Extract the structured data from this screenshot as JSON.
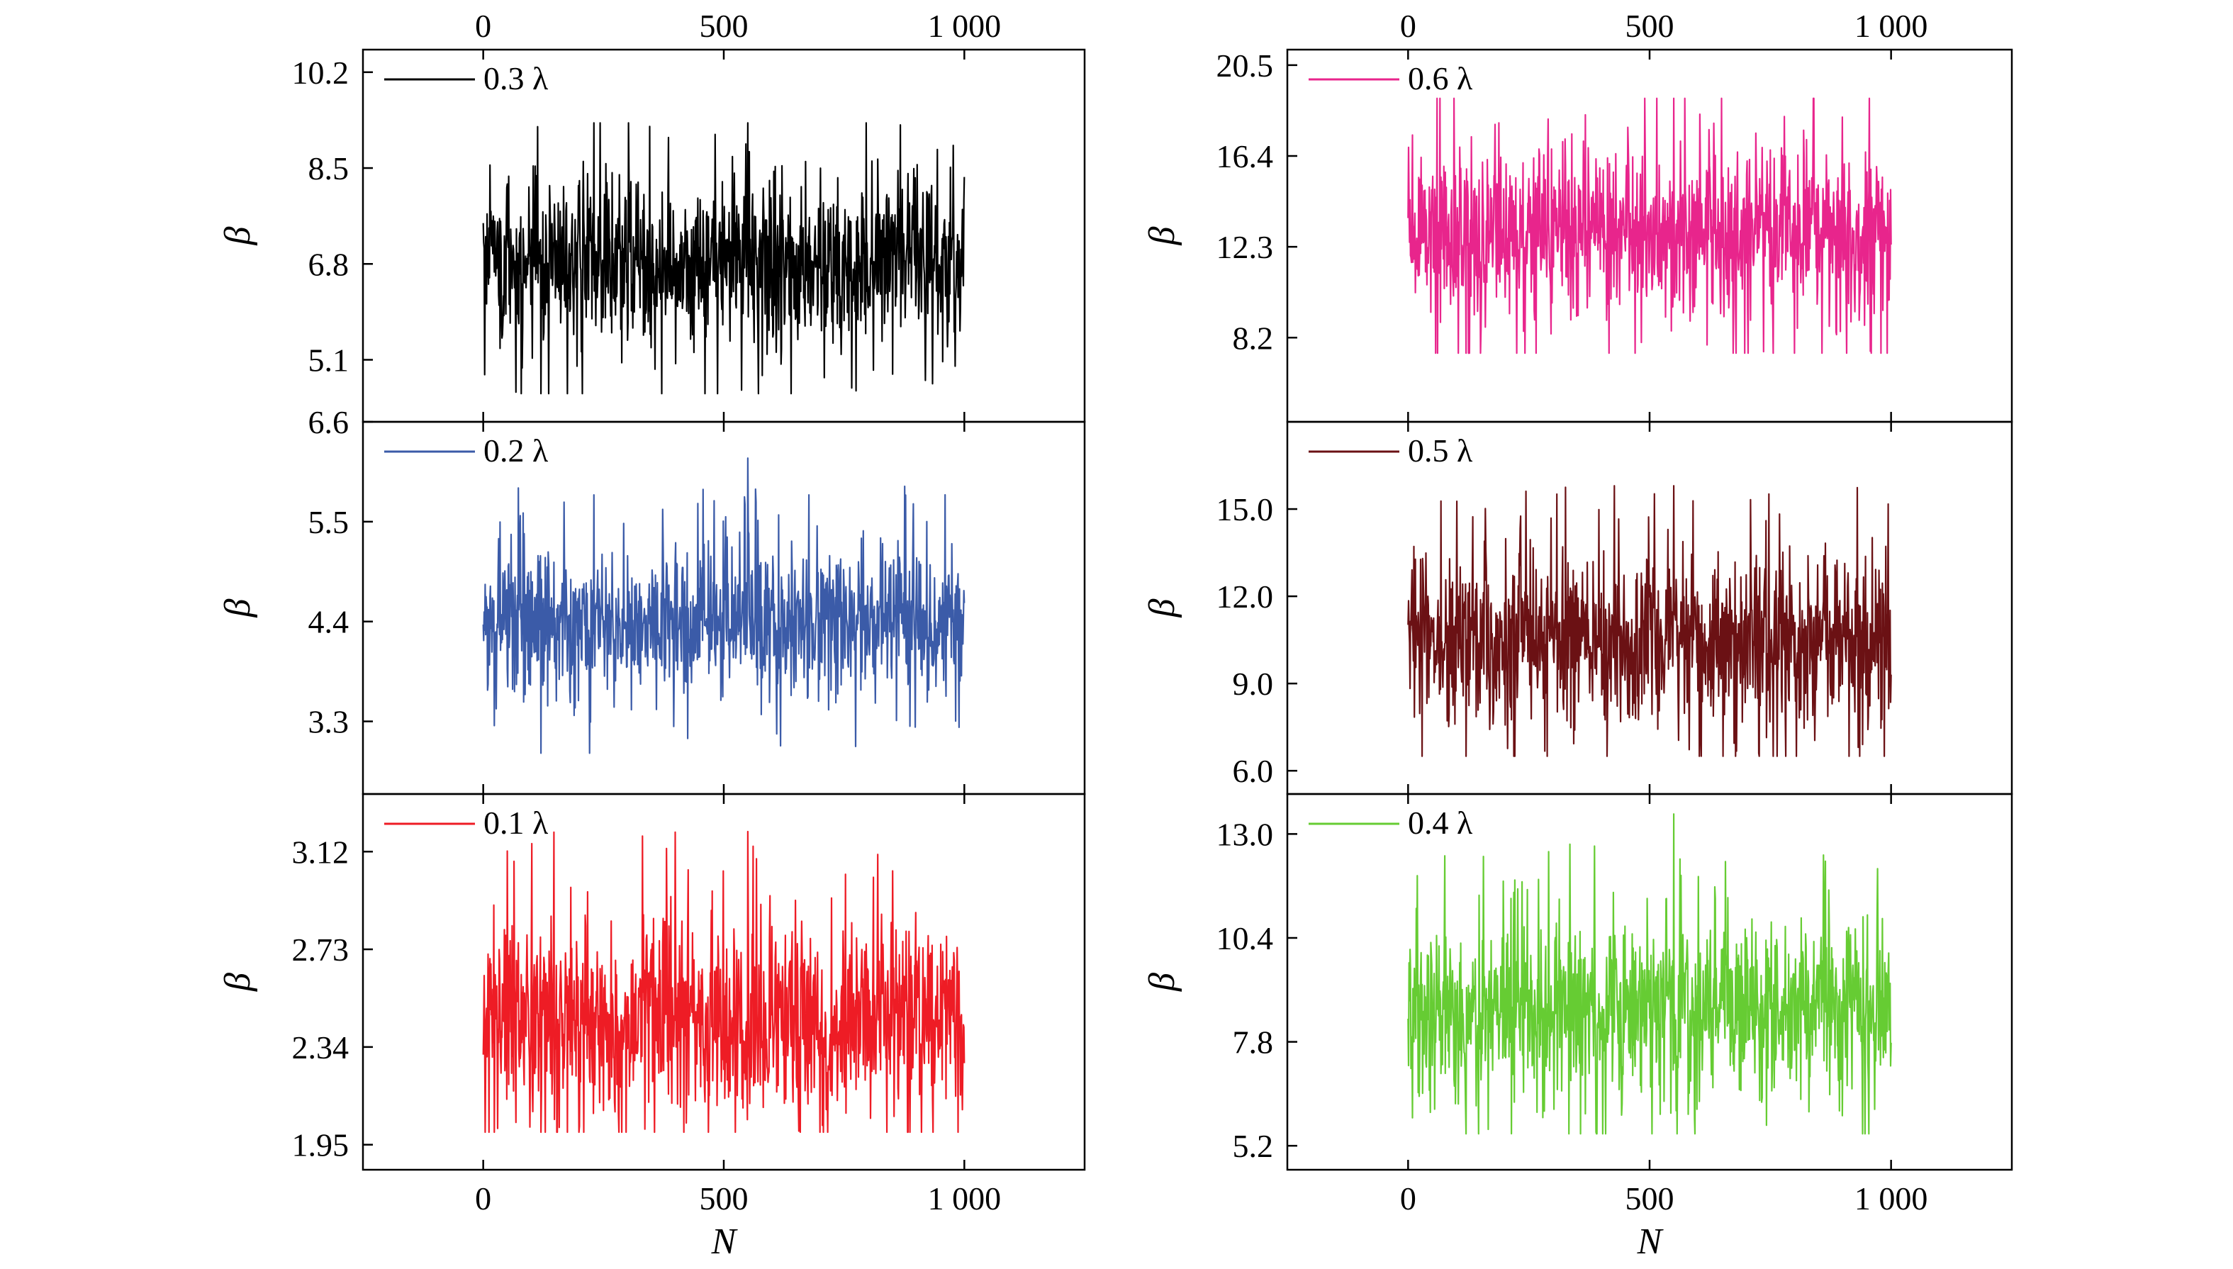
{
  "figure": {
    "x_axis_title": "N",
    "x_tick_labels": [
      "0",
      "500",
      "1 000"
    ]
  },
  "chart_data": [
    {
      "type": "line",
      "panel": "left-top",
      "series": [
        {
          "name": "0.3 λ",
          "color": "#000000",
          "mean": 6.8,
          "spread": 0.75,
          "spike_max": 9.3,
          "spike_min": 4.5
        }
      ],
      "x": [
        0,
        1000
      ],
      "xlim": [
        -250,
        1250
      ],
      "ylim": [
        4.0,
        10.6
      ],
      "ylabel": "β",
      "yticks": [
        5.1,
        6.8,
        8.5,
        10.2
      ],
      "ytick_labels": [
        "5.1",
        "6.8",
        "8.5",
        "10.2"
      ],
      "legend": "top-left"
    },
    {
      "type": "line",
      "panel": "left-middle",
      "series": [
        {
          "name": "0.2 λ",
          "color": "#3b5ba8",
          "mean": 4.4,
          "spread": 0.4,
          "spike_max": 6.2,
          "spike_min": 2.95
        }
      ],
      "x": [
        0,
        1000
      ],
      "xlim": [
        -250,
        1250
      ],
      "ylim": [
        2.5,
        6.6
      ],
      "ylabel": "β",
      "yticks": [
        3.3,
        4.4,
        5.5,
        6.6
      ],
      "ytick_labels": [
        "3.3",
        "4.4",
        "5.5",
        "6.6"
      ],
      "legend": "top-left"
    },
    {
      "type": "line",
      "panel": "left-bottom",
      "series": [
        {
          "name": "0.1 λ",
          "color": "#ee1c25",
          "mean": 2.45,
          "spread": 0.2,
          "spike_max": 3.2,
          "spike_min": 2.0
        }
      ],
      "x": [
        0,
        1000
      ],
      "xlim": [
        -250,
        1250
      ],
      "ylim": [
        1.85,
        3.35
      ],
      "ylabel": "β",
      "yticks": [
        1.95,
        2.34,
        2.73,
        3.12
      ],
      "ytick_labels": [
        "1.95",
        "2.34",
        "2.73",
        "3.12"
      ],
      "legend": "top-left"
    },
    {
      "type": "line",
      "panel": "right-top",
      "series": [
        {
          "name": "0.6 λ",
          "color": "#e8258c",
          "mean": 13.0,
          "spread": 2.0,
          "spike_max": 19.0,
          "spike_min": 7.5
        }
      ],
      "x": [
        0,
        1000
      ],
      "xlim": [
        -250,
        1250
      ],
      "ylim": [
        4.4,
        21.2
      ],
      "ylabel": "β",
      "yticks": [
        8.2,
        12.3,
        16.4,
        20.5
      ],
      "ytick_labels": [
        "8.2",
        "12.3",
        "16.4",
        "20.5"
      ],
      "legend": "top-left"
    },
    {
      "type": "line",
      "panel": "right-middle",
      "series": [
        {
          "name": "0.5 λ",
          "color": "#6b1114",
          "mean": 10.5,
          "spread": 1.5,
          "spike_max": 15.8,
          "spike_min": 6.5
        }
      ],
      "x": [
        0,
        1000
      ],
      "xlim": [
        -250,
        1250
      ],
      "ylim": [
        5.2,
        18.0
      ],
      "ylabel": "β",
      "yticks": [
        6.0,
        9.0,
        12.0,
        15.0
      ],
      "ytick_labels": [
        "6.0",
        "9.0",
        "12.0",
        "15.0"
      ],
      "legend": "top-left"
    },
    {
      "type": "line",
      "panel": "right-bottom",
      "series": [
        {
          "name": "0.4 λ",
          "color": "#66cc33",
          "mean": 8.6,
          "spread": 1.1,
          "spike_max": 13.5,
          "spike_min": 5.5
        }
      ],
      "x": [
        0,
        1000
      ],
      "xlim": [
        -250,
        1250
      ],
      "ylim": [
        4.6,
        14.0
      ],
      "ylabel": "β",
      "yticks": [
        5.2,
        7.8,
        10.4,
        13.0
      ],
      "ytick_labels": [
        "5.2",
        "7.8",
        "10.4",
        "13.0"
      ],
      "legend": "top-left"
    }
  ]
}
